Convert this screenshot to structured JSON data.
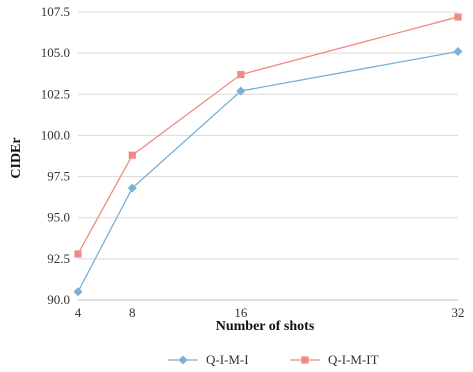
{
  "chart_data": {
    "type": "line",
    "xlabel": "Number of shots",
    "ylabel": "CIDEr",
    "x": [
      4,
      8,
      16,
      32
    ],
    "xlim": [
      4,
      32
    ],
    "ylim": [
      90.0,
      107.5
    ],
    "y_ticks": [
      "90.0",
      "92.5",
      "95.0",
      "97.5",
      "100.0",
      "102.5",
      "105.0",
      "107.5"
    ],
    "x_ticks": [
      "4",
      "8",
      "16",
      "32"
    ],
    "grid": "horizontal",
    "legend_position": "bottom",
    "series": [
      {
        "name": "Q-I-M-I",
        "values": [
          90.5,
          96.8,
          102.7,
          105.1
        ],
        "color": "#7bafd4",
        "marker": "diamond"
      },
      {
        "name": "Q-I-M-IT",
        "values": [
          92.8,
          98.8,
          103.7,
          107.2
        ],
        "color": "#f08b84",
        "marker": "square"
      }
    ]
  }
}
